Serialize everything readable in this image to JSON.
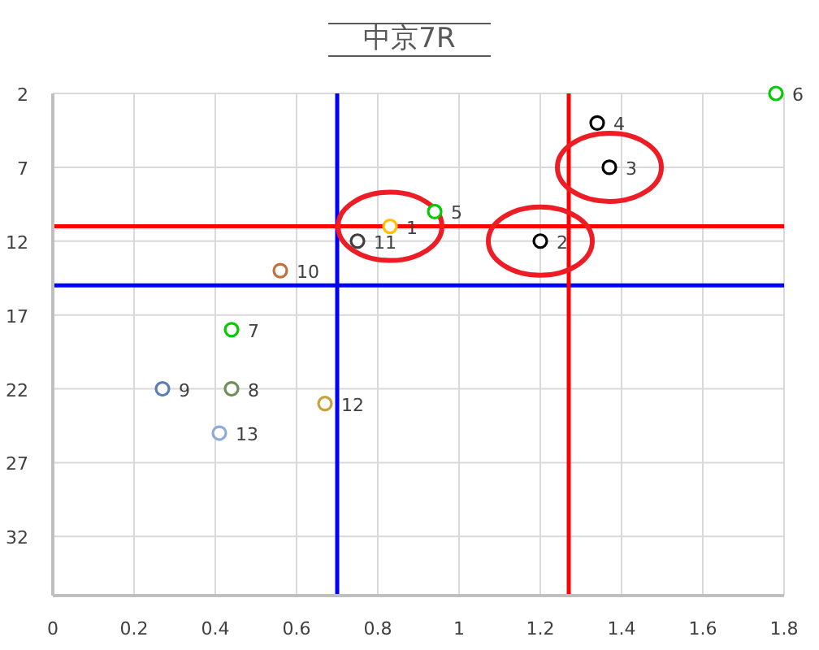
{
  "chart_data": {
    "type": "scatter",
    "title": "中京7R",
    "xlim": [
      0,
      1.8
    ],
    "ylim": [
      36,
      2
    ],
    "xticks": [
      0,
      0.2,
      0.4,
      0.6,
      0.8,
      1,
      1.2,
      1.4,
      1.6,
      1.8
    ],
    "yticks": [
      2,
      7,
      12,
      17,
      22,
      27,
      32
    ],
    "grid": true,
    "marker": "circle",
    "ref_lines": [
      {
        "axis": "x",
        "value": 0.7,
        "color": "#0000ff"
      },
      {
        "axis": "y",
        "value": 15,
        "color": "#0000ff"
      },
      {
        "axis": "x",
        "value": 1.27,
        "color": "#ff0000"
      },
      {
        "axis": "y",
        "value": 11,
        "color": "#ff0000"
      }
    ],
    "series": [
      {
        "name": "1",
        "color": "#ffc000",
        "x": [
          0.83
        ],
        "values": [
          11
        ]
      },
      {
        "name": "2",
        "color": "#000000",
        "x": [
          1.2
        ],
        "values": [
          12
        ]
      },
      {
        "name": "3",
        "color": "#000000",
        "x": [
          1.37
        ],
        "values": [
          7
        ]
      },
      {
        "name": "4",
        "color": "#000000",
        "x": [
          1.34
        ],
        "values": [
          4
        ]
      },
      {
        "name": "5",
        "color": "#00cc00",
        "x": [
          0.94
        ],
        "values": [
          10
        ]
      },
      {
        "name": "6",
        "color": "#00cc00",
        "x": [
          1.78
        ],
        "values": [
          2
        ]
      },
      {
        "name": "7",
        "color": "#00cc00",
        "x": [
          0.44
        ],
        "values": [
          18
        ]
      },
      {
        "name": "8",
        "color": "#6f8f5a",
        "x": [
          0.44
        ],
        "values": [
          22
        ]
      },
      {
        "name": "9",
        "color": "#5b7fb5",
        "x": [
          0.27
        ],
        "values": [
          22
        ]
      },
      {
        "name": "10",
        "color": "#c0703a",
        "x": [
          0.56
        ],
        "values": [
          14
        ]
      },
      {
        "name": "11",
        "color": "#404040",
        "x": [
          0.75
        ],
        "values": [
          12
        ]
      },
      {
        "name": "12",
        "color": "#c9a13b",
        "x": [
          0.67
        ],
        "values": [
          23
        ]
      },
      {
        "name": "13",
        "color": "#8eaadb",
        "x": [
          0.41
        ],
        "values": [
          25
        ]
      }
    ]
  }
}
